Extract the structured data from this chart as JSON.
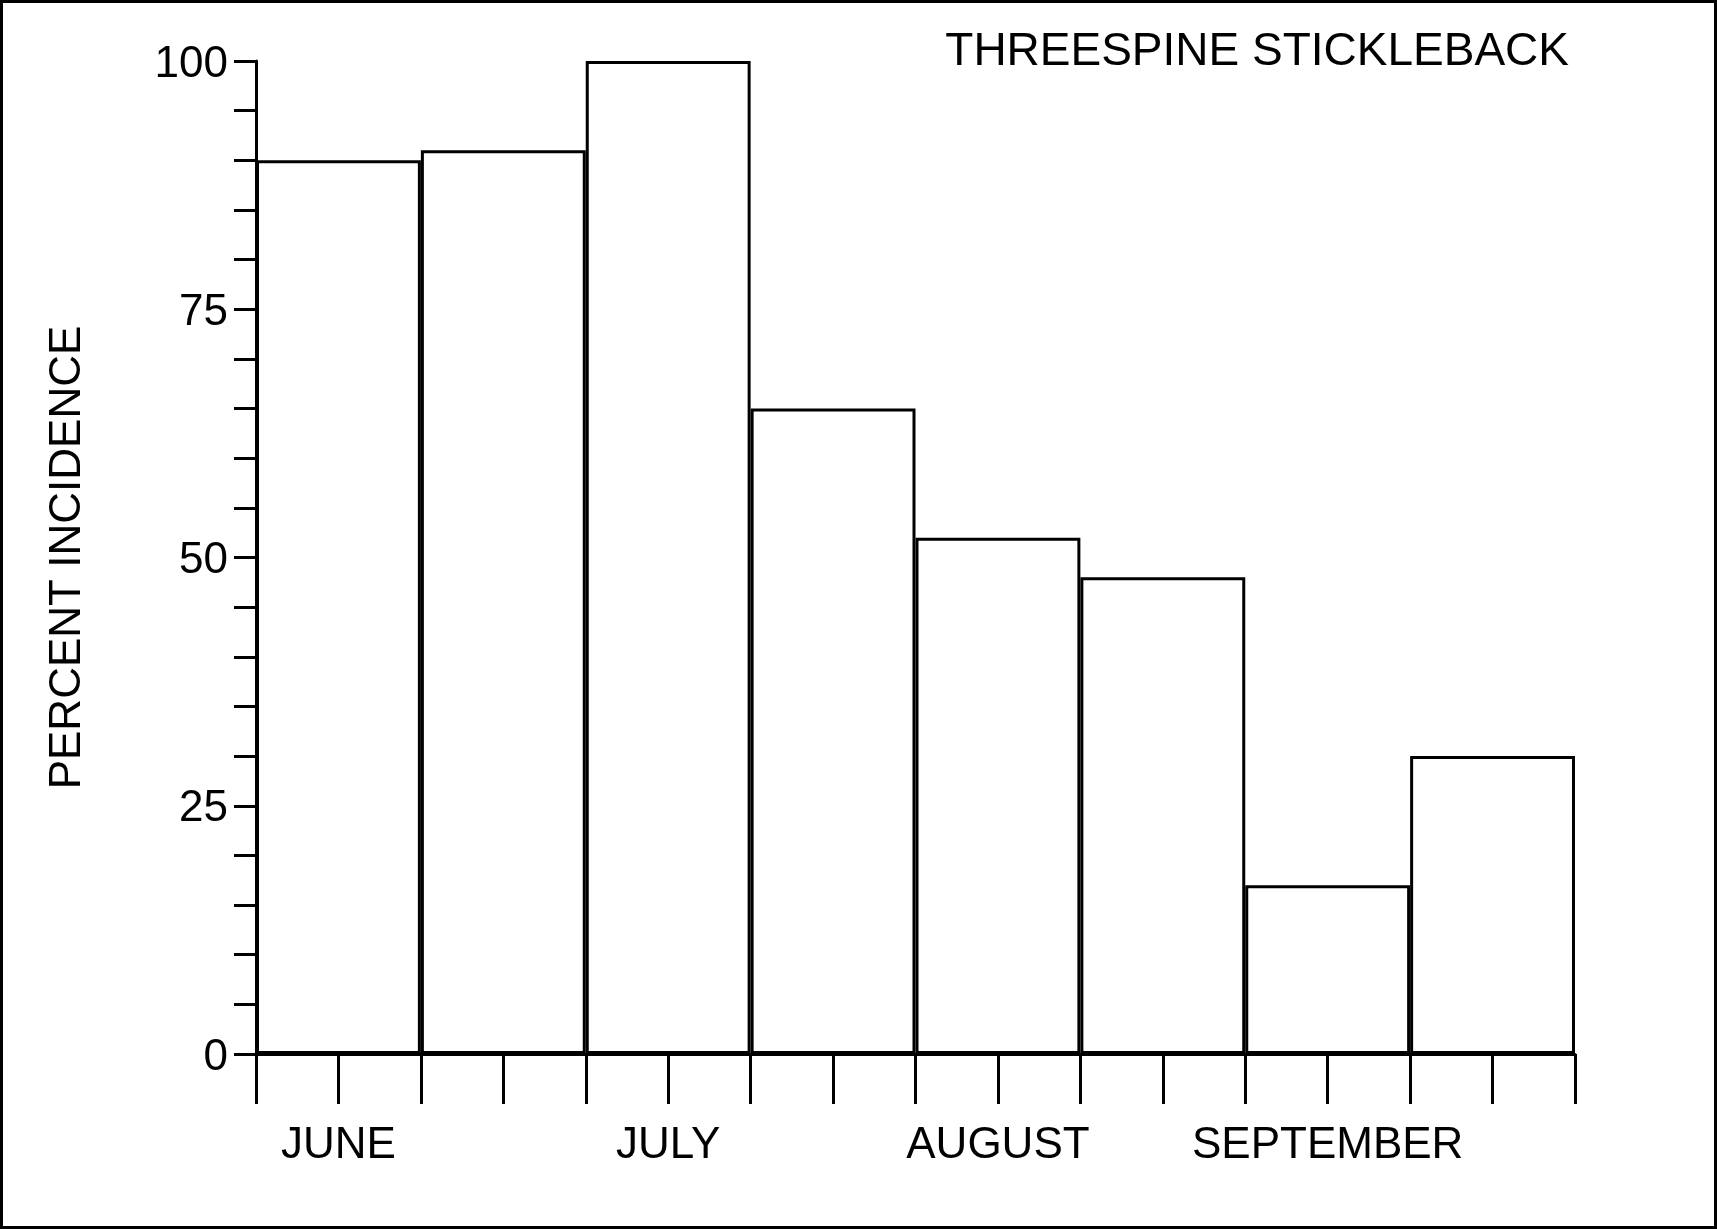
{
  "chart_data": {
    "type": "bar",
    "title": "THREESPINE STICKLEBACK",
    "ylabel": "PERCENT INCIDENCE",
    "categories": [
      "JUNE",
      null,
      "JULY",
      null,
      "AUGUST",
      null,
      "SEPTEMBER",
      null
    ],
    "values": [
      90,
      91,
      100,
      65,
      52,
      48,
      17,
      30
    ],
    "color": "#ffffff",
    "ylim": [
      0,
      100
    ],
    "yticks": [
      0,
      25,
      50,
      75,
      100
    ]
  }
}
